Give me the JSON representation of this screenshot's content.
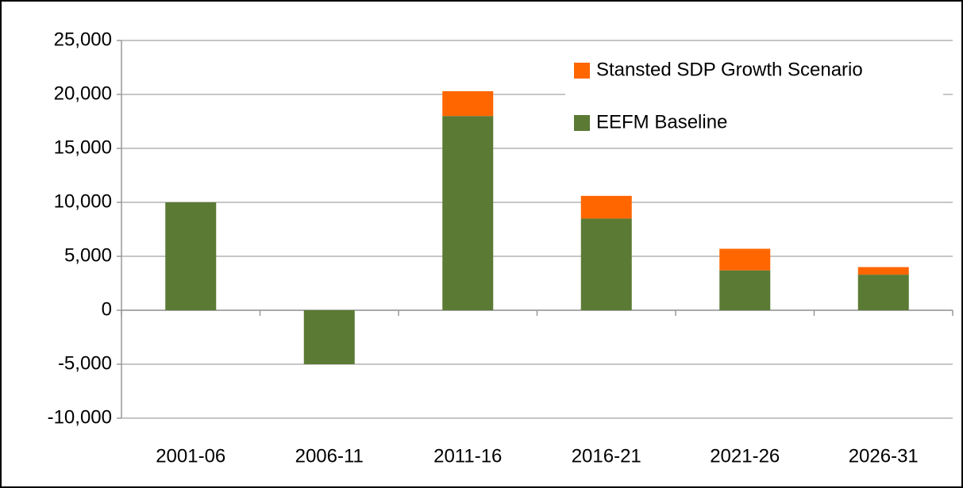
{
  "chart_data": {
    "type": "stacked_bar",
    "categories": [
      "2001-06",
      "2006-11",
      "2011-16",
      "2016-21",
      "2021-26",
      "2026-31"
    ],
    "series": [
      {
        "name": "EEFM Baseline",
        "color": "#5b7a34",
        "values": [
          10000,
          -5000,
          18000,
          8500,
          3700,
          3300
        ]
      },
      {
        "name": "Stansted SDP Growth Scenario",
        "color": "#ff6600",
        "values": [
          0,
          0,
          2300,
          2100,
          2000,
          700
        ]
      }
    ],
    "ylim": [
      -10000,
      25000
    ],
    "yticks": [
      {
        "value": -10000,
        "label": "-10,000"
      },
      {
        "value": -5000,
        "label": "-5,000"
      },
      0,
      {
        "value": 5000,
        "label": "5,000"
      },
      {
        "value": 10000,
        "label": "10,000"
      },
      {
        "value": 15000,
        "label": "15,000"
      },
      {
        "value": 20000,
        "label": "20,000"
      },
      {
        "value": 25000,
        "label": "25,000"
      }
    ],
    "grid": true,
    "legend": "top-right"
  }
}
